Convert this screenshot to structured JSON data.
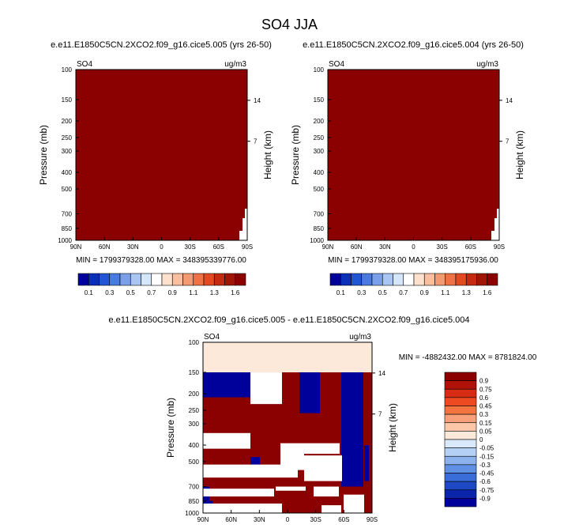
{
  "title": "SO4 JJA",
  "colors": {
    "field_fill": "#8b0000",
    "bottom_pale": "#fde9d9",
    "dark_red": "#8b0000",
    "dark_blue": "#00009b",
    "white": "#ffffff"
  },
  "chart_data": [
    {
      "type": "heatmap",
      "panel": "left",
      "subtitle": "e.e11.E1850C5CN.2XCO2.f09_g16.cice5.005 (yrs 26-50)",
      "variable": "SO4",
      "units": "ug/m3",
      "ylabel": "Pressure (mb)",
      "ylabel_right": "Height (km)",
      "yticks": [
        "100",
        "150",
        "200",
        "250",
        "300",
        "400",
        "500",
        "700",
        "850",
        "1000"
      ],
      "yticks_right": [
        "14",
        "7"
      ],
      "xticks": [
        "90N",
        "60N",
        "30N",
        "0",
        "30S",
        "60S",
        "90S"
      ],
      "stats": "MIN = 1799379328.00   MAX = 348395339776.00",
      "colorbar": {
        "labels": [
          "0.1",
          "0.3",
          "0.5",
          "0.7",
          "0.9",
          "1.1",
          "1.3",
          "1.6"
        ],
        "colors": [
          "#00009b",
          "#0a2fb8",
          "#2255d4",
          "#4a7ae0",
          "#7aa0ea",
          "#a9c5f2",
          "#d6e6fa",
          "#ffffff",
          "#fde1cc",
          "#f9bf9f",
          "#f49a70",
          "#ee7246",
          "#e34a22",
          "#c42a10",
          "#a01505",
          "#8b0000"
        ]
      }
    },
    {
      "type": "heatmap",
      "panel": "right",
      "subtitle": "e.e11.E1850C5CN.2XCO2.f09_g16.cice5.004 (yrs 26-50)",
      "variable": "SO4",
      "units": "ug/m3",
      "ylabel": "Pressure (mb)",
      "ylabel_right": "Height (km)",
      "yticks": [
        "100",
        "150",
        "200",
        "250",
        "300",
        "400",
        "500",
        "700",
        "850",
        "1000"
      ],
      "yticks_right": [
        "14",
        "7"
      ],
      "xticks": [
        "90N",
        "60N",
        "30N",
        "0",
        "30S",
        "60S",
        "90S"
      ],
      "stats": "MIN = 1799379328.00   MAX = 348395175936.00",
      "colorbar": {
        "labels": [
          "0.1",
          "0.3",
          "0.5",
          "0.7",
          "0.9",
          "1.1",
          "1.3",
          "1.6"
        ],
        "colors": [
          "#00009b",
          "#0a2fb8",
          "#2255d4",
          "#4a7ae0",
          "#7aa0ea",
          "#a9c5f2",
          "#d6e6fa",
          "#ffffff",
          "#fde1cc",
          "#f9bf9f",
          "#f49a70",
          "#ee7246",
          "#e34a22",
          "#c42a10",
          "#a01505",
          "#8b0000"
        ]
      }
    },
    {
      "type": "heatmap",
      "panel": "difference",
      "subtitle": "e.e11.E1850C5CN.2XCO2.f09_g16.cice5.005 - e.e11.E1850C5CN.2XCO2.f09_g16.cice5.004",
      "variable": "SO4",
      "units": "ug/m3",
      "ylabel": "Pressure (mb)",
      "ylabel_right": "Height (km)",
      "yticks": [
        "100",
        "150",
        "200",
        "250",
        "300",
        "400",
        "500",
        "700",
        "850",
        "1000"
      ],
      "yticks_right": [
        "14",
        "7"
      ],
      "xticks": [
        "90N",
        "60N",
        "30N",
        "0",
        "30S",
        "60S",
        "90S"
      ],
      "stats": "MIN = -4882432.00   MAX = 8781824.00",
      "colorbar": {
        "labels": [
          "0.9",
          "0.75",
          "0.6",
          "0.45",
          "0.3",
          "0.15",
          "0.05",
          "0",
          "-0.05",
          "-0.15",
          "-0.3",
          "-0.45",
          "-0.6",
          "-0.75",
          "-0.9"
        ],
        "colors": [
          "#8b0000",
          "#b01208",
          "#d62c14",
          "#ee4a22",
          "#f4733f",
          "#f8a07a",
          "#fbc7a8",
          "#fde9d9",
          "#d9e8fa",
          "#b5d0f5",
          "#8cb2ee",
          "#6090e4",
          "#3a6dd8",
          "#1f48c4",
          "#0a25aa",
          "#00009b"
        ]
      }
    }
  ]
}
